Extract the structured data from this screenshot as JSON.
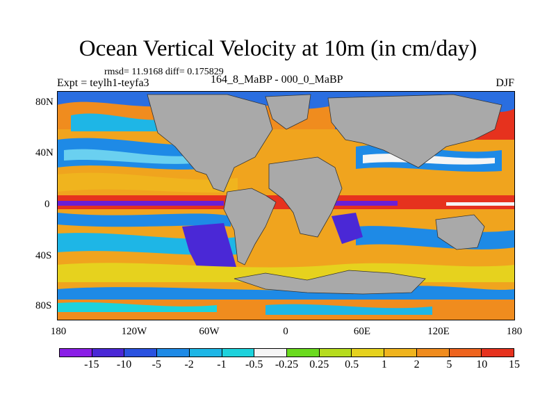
{
  "title": "Ocean Vertical Velocity at 10m (in cm/day)",
  "stats": "rmsd= 11.9168 diff= 0.175829",
  "experiment": "Expt = teylh1-teyfa3",
  "period": "164_8_MaBP - 000_0_MaBP",
  "season": "DJF",
  "y_axis_labels": [
    "80N",
    "40N",
    "0",
    "40S",
    "80S"
  ],
  "x_axis_labels": [
    "180",
    "120W",
    "60W",
    "0",
    "60E",
    "120E",
    "180"
  ],
  "colorbar": {
    "labels": [
      "-15",
      "-10",
      "-5",
      "-2",
      "-1",
      "-0.5",
      "-0.25",
      "0.25",
      "0.5",
      "1",
      "2",
      "5",
      "10",
      "15"
    ],
    "colors": [
      "#8a1ee6",
      "#4a28d6",
      "#2a52e0",
      "#1e8ae6",
      "#1eb6e6",
      "#1ed2dc",
      "#f5f5f5",
      "#6ada1e",
      "#b6dc1e",
      "#e6d21e",
      "#f0b41e",
      "#f08c1e",
      "#ee641e",
      "#e6321e"
    ]
  },
  "land_color": "#a9a9a9"
}
